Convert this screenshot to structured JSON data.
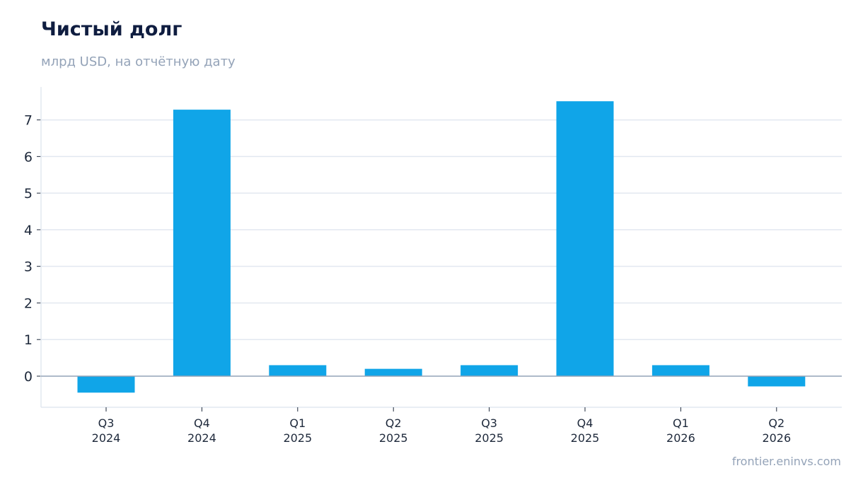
{
  "header": {
    "title": "Чистый долг",
    "subtitle": "млрд USD, на отчётную дату"
  },
  "footer": {
    "source": "frontier.eninvs.com"
  },
  "chart_data": {
    "type": "bar",
    "title": "Чистый долг",
    "subtitle": "млрд USD, на отчётную дату",
    "xlabel": "",
    "ylabel": "",
    "categories": [
      [
        "Q3",
        "2024"
      ],
      [
        "Q4",
        "2024"
      ],
      [
        "Q1",
        "2025"
      ],
      [
        "Q2",
        "2025"
      ],
      [
        "Q3",
        "2025"
      ],
      [
        "Q4",
        "2025"
      ],
      [
        "Q1",
        "2026"
      ],
      [
        "Q2",
        "2026"
      ]
    ],
    "values": [
      -0.45,
      7.28,
      0.3,
      0.2,
      0.3,
      7.51,
      0.3,
      -0.28
    ],
    "ylim": [
      -0.85,
      7.9
    ],
    "yticks": [
      0,
      1,
      2,
      3,
      4,
      5,
      6,
      7
    ],
    "grid": true,
    "legend": "none",
    "colors": {
      "bar": "#10a5e8",
      "grid": "#e2e8f0",
      "zero_line": "#94a3b8",
      "axis": "#e2e8f0"
    }
  }
}
